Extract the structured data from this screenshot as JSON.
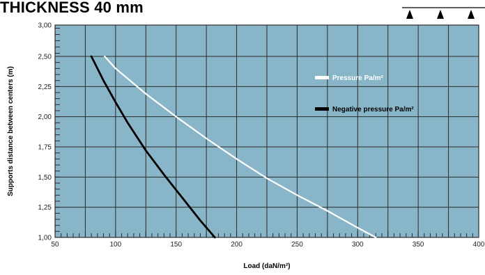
{
  "header": {
    "title": "THICKNESS 40 mm"
  },
  "colors": {
    "plot_bg": "#88b6c8",
    "grid": "#2a2a2a",
    "pressure_line": "#ffffff",
    "negative_line": "#000000"
  },
  "chart_data": {
    "type": "line",
    "xlabel": "Load (daN/m²)",
    "ylabel": "Supports distance between centers (m)",
    "xlim": [
      50,
      400
    ],
    "ylim": [
      1.0,
      3.0
    ],
    "x_ticks": [
      "50",
      "100",
      "150",
      "200",
      "250",
      "300",
      "350",
      "400"
    ],
    "y_ticks": [
      "1,00",
      "1,25",
      "1,50",
      "1,75",
      "2,00",
      "2,25",
      "2,50",
      "3,00"
    ],
    "grid": true,
    "legend_position": "right",
    "series": [
      {
        "name": "Pressure Pa/m²",
        "color": "#ffffff",
        "x": [
          91,
          100,
          125,
          150,
          175,
          200,
          225,
          250,
          275,
          300,
          315
        ],
        "y": [
          2.5,
          2.4,
          2.19,
          2.0,
          1.82,
          1.65,
          1.49,
          1.35,
          1.22,
          1.08,
          1.0
        ]
      },
      {
        "name": "Negative pressure Pa/m²",
        "color": "#000000",
        "x": [
          80,
          90,
          100,
          110,
          125,
          140,
          155,
          170,
          182
        ],
        "y": [
          2.5,
          2.3,
          2.12,
          1.95,
          1.72,
          1.52,
          1.33,
          1.14,
          1.0
        ]
      }
    ],
    "support_symbols": {
      "count": 3
    }
  }
}
